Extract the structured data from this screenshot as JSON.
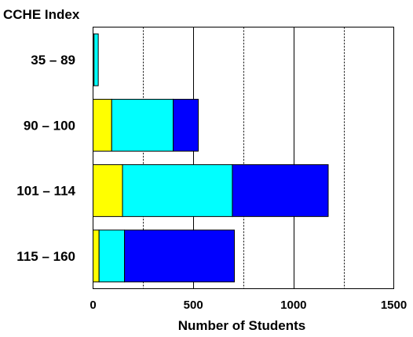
{
  "chart_data": {
    "type": "bar",
    "orientation": "horizontal",
    "stacked": true,
    "title": "CCHE Index",
    "xlabel": "Number of Students",
    "ylabel": "",
    "categories": [
      "35 – 89",
      "90 – 100",
      "101 – 114",
      "115 – 160"
    ],
    "series": [
      {
        "values": [
          5,
          93,
          147,
          30
        ],
        "color": "#ffff00"
      },
      {
        "values": [
          21,
          307,
          548,
          127
        ],
        "color": "#00ffff"
      },
      {
        "values": [
          0,
          125,
          478,
          548
        ],
        "color": "#0000ff"
      }
    ],
    "xlim": [
      0,
      1500
    ],
    "xticks": [
      0,
      500,
      1000,
      1500
    ],
    "gridlines": [
      {
        "value": 250,
        "style": "dashed"
      },
      {
        "value": 500,
        "style": "solid"
      },
      {
        "value": 750,
        "style": "dashed"
      },
      {
        "value": 1000,
        "style": "solid"
      },
      {
        "value": 1250,
        "style": "dashed"
      }
    ],
    "legend": "none"
  }
}
